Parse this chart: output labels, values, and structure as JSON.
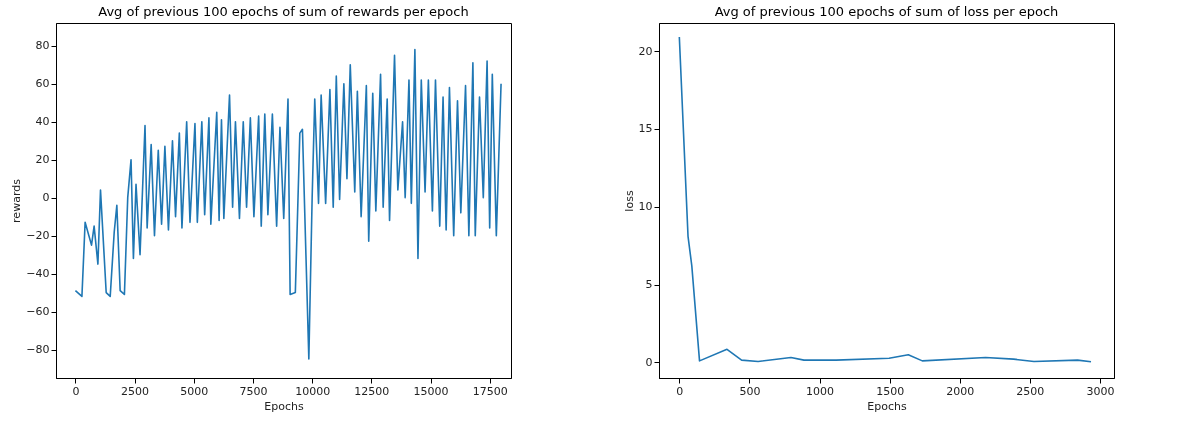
{
  "chart_data": [
    {
      "type": "line",
      "title": "Avg of previous 100 epochs of sum of rewards per epoch",
      "xlabel": "Epochs",
      "ylabel": "rewards",
      "xlim": [
        -820,
        18400
      ],
      "ylim": [
        -95,
        92
      ],
      "xticks": [
        0,
        2500,
        5000,
        7500,
        10000,
        12500,
        15000,
        17500
      ],
      "yticks": [
        -80,
        -60,
        -40,
        -20,
        0,
        20,
        40,
        60,
        80
      ],
      "grid": false,
      "x": [
        0,
        275,
        410,
        680,
        790,
        950,
        1060,
        1300,
        1470,
        1640,
        1750,
        1890,
        2070,
        2210,
        2350,
        2450,
        2560,
        2730,
        2940,
        3030,
        3200,
        3340,
        3500,
        3640,
        3780,
        3930,
        4100,
        4230,
        4390,
        4500,
        4700,
        4840,
        5050,
        5150,
        5340,
        5460,
        5640,
        5720,
        5970,
        6070,
        6170,
        6270,
        6510,
        6640,
        6760,
        6930,
        7090,
        7230,
        7390,
        7540,
        7740,
        7850,
        8000,
        8130,
        8320,
        8500,
        8640,
        8800,
        8980,
        9070,
        9290,
        9480,
        9590,
        9860,
        10000,
        10110,
        10270,
        10380,
        10570,
        10750,
        10890,
        11020,
        11160,
        11340,
        11470,
        11610,
        11800,
        11910,
        12070,
        12290,
        12390,
        12560,
        12690,
        12890,
        13000,
        13170,
        13270,
        13480,
        13620,
        13820,
        13930,
        14090,
        14190,
        14340,
        14470,
        14610,
        14770,
        14910,
        15080,
        15210,
        15390,
        15530,
        15660,
        15800,
        15980,
        16140,
        16280,
        16480,
        16620,
        16790,
        16890,
        17070,
        17230,
        17390,
        17500,
        17610,
        17780,
        17980
      ],
      "series": [
        {
          "color": "#1f77b4",
          "values": [
            -49,
            -52,
            -13,
            -25,
            -15,
            -35,
            4,
            -50,
            -52,
            -18,
            -4,
            -49,
            -51,
            0,
            20,
            -32,
            7,
            -30,
            38,
            -16,
            28,
            -20,
            25,
            -14,
            27,
            -17,
            30,
            -10,
            34,
            -16,
            40,
            -13,
            39,
            -13,
            40,
            -9,
            42,
            -14,
            45,
            -12,
            41,
            -11,
            54,
            -5,
            40,
            -11,
            40,
            -5,
            42,
            -10,
            43,
            -15,
            44,
            -9,
            44,
            -15,
            37,
            -11,
            52,
            -51,
            -50,
            34,
            36,
            -85,
            0,
            52,
            -3,
            54,
            -3,
            57,
            -5,
            64,
            -1,
            60,
            10,
            70,
            3,
            56,
            -10,
            59,
            -23,
            55,
            -7,
            65,
            -5,
            52,
            -12,
            75,
            4,
            40,
            0,
            62,
            -3,
            78,
            -32,
            62,
            3,
            62,
            -7,
            62,
            -15,
            53,
            -17,
            58,
            -20,
            51,
            -8,
            59,
            -20,
            71,
            -20,
            53,
            0,
            72,
            -16,
            65,
            -20,
            60
          ]
        }
      ]
    },
    {
      "type": "line",
      "title": "Avg of previous 100 epochs of sum of loss per epoch",
      "xlabel": "Epochs",
      "ylabel": "loss",
      "xlim": [
        -145,
        3100
      ],
      "ylim": [
        -1,
        21.8
      ],
      "xticks": [
        0,
        500,
        1000,
        1500,
        2000,
        2500,
        3000
      ],
      "yticks": [
        0,
        5,
        10,
        15,
        20
      ],
      "grid": false,
      "x": [
        0,
        62,
        89,
        144,
        340,
        444,
        562,
        796,
        889,
        1118,
        1496,
        1633,
        1733,
        2184,
        2384,
        2529,
        2840,
        2936
      ],
      "series": [
        {
          "color": "#1f77b4",
          "values": [
            20.9,
            8.1,
            6.2,
            0.1,
            0.84,
            0.15,
            0.06,
            0.32,
            0.15,
            0.15,
            0.27,
            0.49,
            0.1,
            0.32,
            0.21,
            0.06,
            0.15,
            0.04
          ]
        }
      ]
    }
  ]
}
